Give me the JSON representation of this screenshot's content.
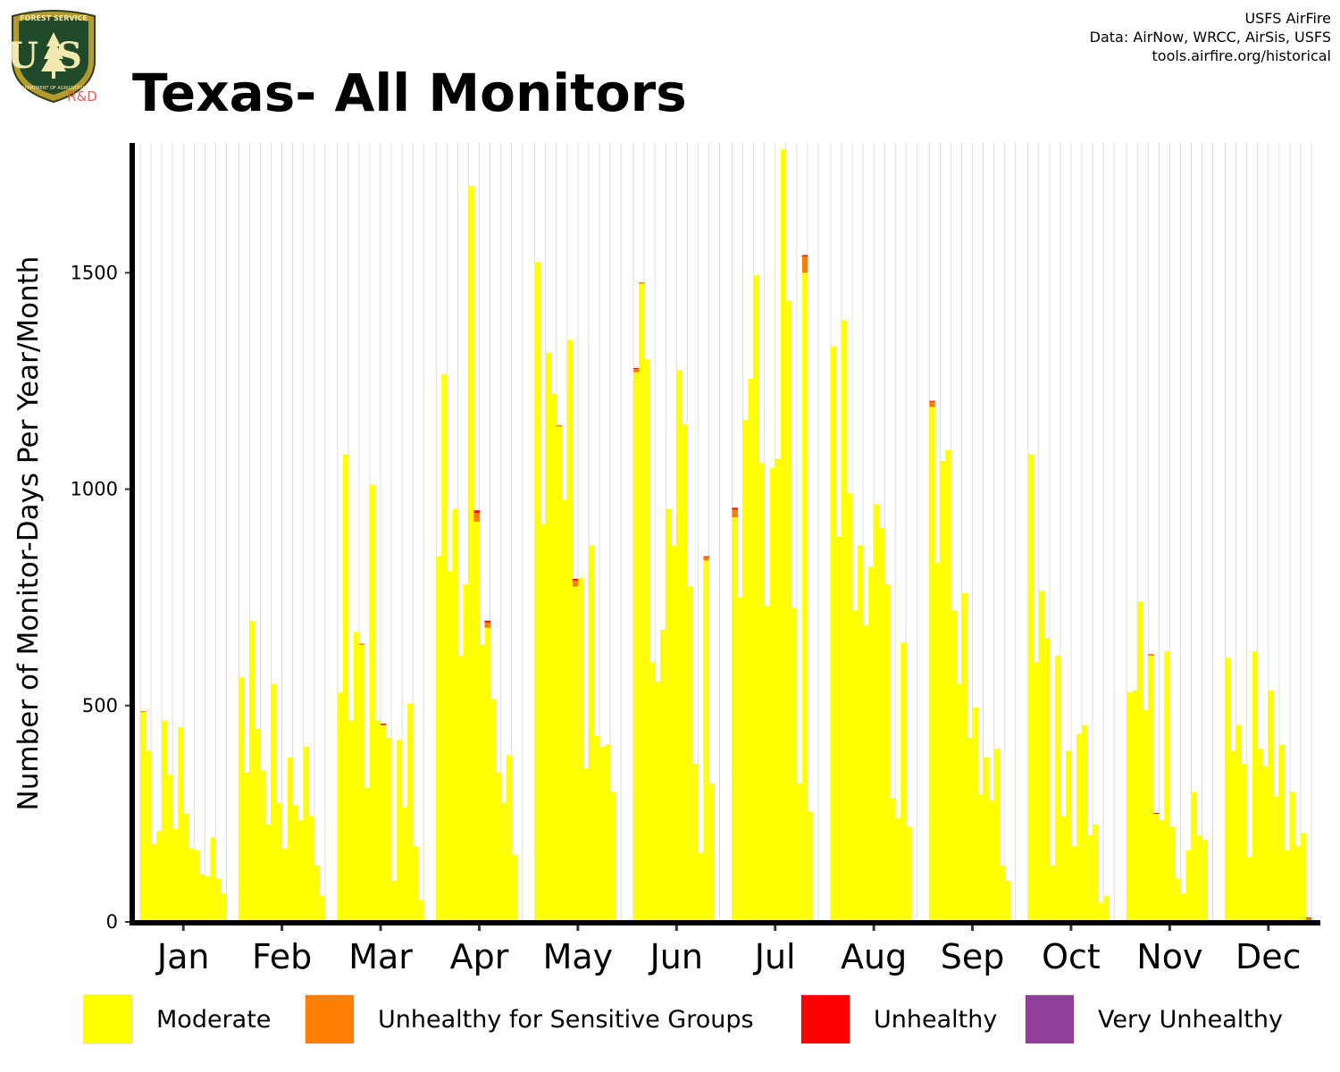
{
  "header": {
    "title": "Texas- All Monitors",
    "credits": [
      "USFS AirFire",
      "Data: AirNow, WRCC, AirSis, USFS",
      "tools.airfire.org/historical"
    ]
  },
  "logo": {
    "top_text": "FOREST SERVICE",
    "monogram": "US",
    "bottom_text": "DEPARTMENT OF AGRICULTURE",
    "tag": "R&D"
  },
  "chart_data": {
    "type": "bar",
    "ylabel": "Number of Monitor-Days Per Year/Month",
    "xlabel": "",
    "ylim": [
      0,
      1800
    ],
    "yticks": [
      0,
      500,
      1000,
      1500
    ],
    "grid": "vertical",
    "legend_position": "bottom",
    "categories": [
      "Jan",
      "Feb",
      "Mar",
      "Apr",
      "May",
      "Jun",
      "Jul",
      "Aug",
      "Sep",
      "Oct",
      "Nov",
      "Dec"
    ],
    "colors": {
      "Moderate": "#ffff00",
      "Unhealthy for Sensitive Groups": "#ff7e00",
      "Unhealthy": "#ff0000",
      "Very Unhealthy": "#8f3f97"
    },
    "legend": [
      "Moderate",
      "Unhealthy for Sensitive Groups",
      "Unhealthy",
      "Very Unhealthy"
    ],
    "series": [
      {
        "name": "Moderate",
        "values": [
          [
            485,
            395,
            180,
            210,
            465,
            340,
            215,
            450,
            250,
            170,
            165,
            110,
            105,
            195,
            100,
            65
          ],
          [
            565,
            345,
            695,
            445,
            350,
            225,
            550,
            275,
            170,
            380,
            270,
            235,
            405,
            245,
            130,
            60
          ],
          [
            530,
            1080,
            465,
            670,
            640,
            310,
            1010,
            465,
            455,
            425,
            95,
            420,
            265,
            505,
            175,
            50
          ],
          [
            845,
            1265,
            810,
            955,
            615,
            780,
            1700,
            925,
            640,
            680,
            515,
            345,
            275,
            385,
            155,
            0
          ],
          [
            1525,
            920,
            1315,
            1220,
            1145,
            975,
            1345,
            775,
            795,
            355,
            870,
            430,
            405,
            410,
            300,
            0
          ],
          [
            1270,
            1475,
            1300,
            600,
            555,
            675,
            955,
            870,
            1275,
            1150,
            775,
            365,
            160,
            835,
            320,
            0
          ],
          [
            935,
            750,
            1160,
            1255,
            1495,
            1060,
            730,
            1050,
            1070,
            1785,
            1435,
            725,
            320,
            1500,
            255,
            0
          ],
          [
            1330,
            890,
            1390,
            990,
            720,
            870,
            685,
            820,
            965,
            910,
            780,
            285,
            240,
            645,
            220,
            0
          ],
          [
            1190,
            830,
            1065,
            1090,
            720,
            550,
            760,
            425,
            495,
            295,
            380,
            280,
            400,
            130,
            95,
            0
          ],
          [
            1080,
            600,
            765,
            655,
            130,
            615,
            245,
            395,
            175,
            435,
            455,
            200,
            225,
            45,
            60,
            0
          ],
          [
            530,
            535,
            740,
            490,
            615,
            250,
            235,
            625,
            220,
            100,
            65,
            165,
            300,
            200,
            190,
            0
          ],
          [
            610,
            395,
            455,
            365,
            150,
            625,
            400,
            360,
            535,
            290,
            410,
            165,
            300,
            175,
            205,
            0
          ]
        ]
      },
      {
        "name": "Unhealthy for Sensitive Groups",
        "values": [
          [
            2,
            0,
            0,
            0,
            0,
            0,
            0,
            0,
            0,
            0,
            0,
            0,
            0,
            0,
            0,
            0
          ],
          [
            0,
            0,
            0,
            0,
            0,
            0,
            0,
            0,
            0,
            0,
            0,
            0,
            0,
            0,
            0,
            0
          ],
          [
            0,
            0,
            0,
            0,
            3,
            0,
            0,
            0,
            0,
            0,
            0,
            0,
            0,
            0,
            0,
            0
          ],
          [
            0,
            0,
            0,
            0,
            0,
            0,
            0,
            20,
            0,
            12,
            0,
            0,
            0,
            0,
            0,
            0
          ],
          [
            0,
            0,
            0,
            0,
            3,
            0,
            0,
            14,
            0,
            0,
            0,
            0,
            0,
            0,
            0,
            0
          ],
          [
            8,
            3,
            0,
            0,
            0,
            0,
            0,
            0,
            0,
            0,
            0,
            0,
            0,
            8,
            0,
            0
          ],
          [
            18,
            0,
            0,
            0,
            0,
            0,
            0,
            0,
            0,
            0,
            0,
            0,
            0,
            38,
            0,
            0
          ],
          [
            0,
            0,
            0,
            0,
            0,
            0,
            0,
            0,
            0,
            0,
            0,
            0,
            0,
            0,
            0,
            0
          ],
          [
            12,
            0,
            0,
            0,
            0,
            0,
            0,
            0,
            0,
            0,
            0,
            0,
            0,
            0,
            0,
            0
          ],
          [
            0,
            0,
            0,
            0,
            0,
            0,
            0,
            0,
            0,
            0,
            0,
            0,
            0,
            0,
            0,
            0
          ],
          [
            0,
            0,
            0,
            0,
            4,
            0,
            0,
            0,
            0,
            0,
            0,
            0,
            0,
            0,
            0,
            0
          ],
          [
            0,
            0,
            0,
            0,
            0,
            0,
            0,
            0,
            0,
            0,
            0,
            0,
            0,
            0,
            0,
            8
          ]
        ]
      },
      {
        "name": "Unhealthy",
        "values": [
          [
            0,
            0,
            0,
            0,
            0,
            0,
            0,
            0,
            0,
            0,
            0,
            0,
            0,
            0,
            0,
            0
          ],
          [
            0,
            0,
            0,
            0,
            0,
            0,
            0,
            0,
            0,
            0,
            0,
            0,
            0,
            0,
            0,
            0
          ],
          [
            0,
            0,
            0,
            0,
            0,
            0,
            0,
            0,
            3,
            0,
            0,
            0,
            0,
            0,
            0,
            0
          ],
          [
            0,
            0,
            0,
            0,
            0,
            0,
            0,
            6,
            0,
            4,
            0,
            0,
            0,
            0,
            0,
            0
          ],
          [
            0,
            0,
            0,
            0,
            0,
            0,
            0,
            4,
            0,
            0,
            0,
            0,
            0,
            0,
            0,
            0
          ],
          [
            2,
            0,
            0,
            0,
            0,
            0,
            0,
            0,
            0,
            0,
            0,
            0,
            0,
            2,
            0,
            0
          ],
          [
            4,
            0,
            0,
            0,
            0,
            0,
            0,
            0,
            0,
            0,
            0,
            0,
            0,
            3,
            0,
            0
          ],
          [
            0,
            0,
            0,
            0,
            0,
            0,
            0,
            0,
            0,
            0,
            0,
            0,
            0,
            0,
            0,
            0
          ],
          [
            2,
            0,
            0,
            0,
            0,
            0,
            0,
            0,
            0,
            0,
            0,
            0,
            0,
            0,
            0,
            0
          ],
          [
            0,
            0,
            0,
            0,
            0,
            0,
            0,
            0,
            0,
            0,
            0,
            0,
            0,
            0,
            0,
            0
          ],
          [
            0,
            0,
            0,
            0,
            0,
            2,
            0,
            0,
            0,
            0,
            0,
            0,
            0,
            0,
            0,
            0
          ],
          [
            0,
            0,
            0,
            0,
            0,
            0,
            0,
            0,
            0,
            0,
            0,
            0,
            0,
            0,
            0,
            2
          ]
        ]
      },
      {
        "name": "Very Unhealthy",
        "values": [
          [
            0,
            0,
            0,
            0,
            0,
            0,
            0,
            0,
            0,
            0,
            0,
            0,
            0,
            0,
            0,
            0
          ],
          [
            0,
            0,
            0,
            0,
            0,
            0,
            0,
            0,
            0,
            0,
            0,
            0,
            0,
            0,
            0,
            0
          ],
          [
            0,
            0,
            0,
            0,
            0,
            0,
            0,
            0,
            0,
            0,
            0,
            0,
            0,
            0,
            0,
            0
          ],
          [
            0,
            0,
            0,
            0,
            0,
            0,
            0,
            0,
            0,
            0,
            0,
            0,
            0,
            0,
            0,
            0
          ],
          [
            0,
            0,
            0,
            0,
            0,
            0,
            0,
            0,
            0,
            0,
            0,
            0,
            0,
            0,
            0,
            0
          ],
          [
            0,
            0,
            0,
            0,
            0,
            0,
            0,
            0,
            0,
            0,
            0,
            0,
            0,
            0,
            0,
            0
          ],
          [
            0,
            0,
            0,
            0,
            0,
            0,
            0,
            0,
            0,
            0,
            0,
            0,
            0,
            0,
            0,
            0
          ],
          [
            0,
            0,
            0,
            0,
            0,
            0,
            0,
            0,
            0,
            0,
            0,
            0,
            0,
            0,
            0,
            0
          ],
          [
            0,
            0,
            0,
            0,
            0,
            0,
            0,
            0,
            0,
            0,
            0,
            0,
            0,
            0,
            0,
            0
          ],
          [
            0,
            0,
            0,
            0,
            0,
            0,
            0,
            0,
            0,
            0,
            0,
            0,
            0,
            0,
            0,
            0
          ],
          [
            0,
            0,
            0,
            0,
            0,
            0,
            0,
            0,
            0,
            0,
            0,
            0,
            0,
            0,
            0,
            0
          ],
          [
            0,
            0,
            0,
            0,
            0,
            0,
            0,
            0,
            0,
            0,
            0,
            0,
            0,
            0,
            0,
            0
          ]
        ]
      }
    ]
  }
}
